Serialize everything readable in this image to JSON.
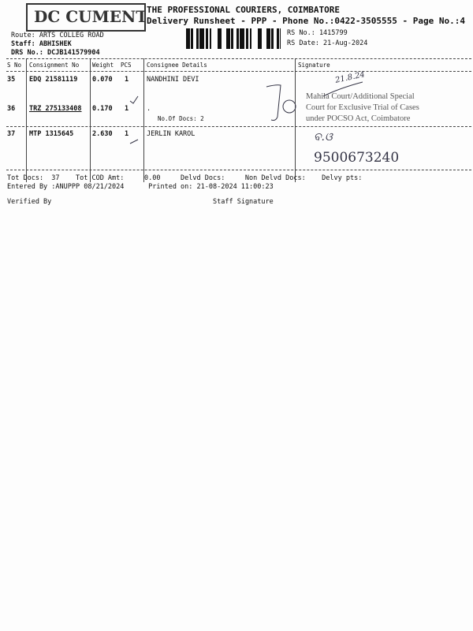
{
  "stamp": {
    "text": "DOCUMENTS"
  },
  "header": {
    "company": "THE PROFESSIONAL COURIERS, COIMBATORE",
    "subtitle": "Delivery Runsheet - PPP - Phone No.:0422-3505555 - Page No.:4",
    "route": "Route: ARTS COLLEG ROAD",
    "staff": "Staff: ABHISHEK",
    "drs": "DRS No.: DCJB141579904",
    "rs_no": "RS No.: 1415799",
    "rs_date": "RS Date: 21-Aug-2024"
  },
  "table": {
    "columns": [
      "S No",
      "Consignment No",
      "Weight",
      "PCS",
      "Consignee Details",
      "Signature"
    ],
    "rows": [
      {
        "sno": "35",
        "consignment": "EDQ 21581119",
        "weight": "0.070",
        "pcs": "1",
        "consignee": "NANDHINI DEVI",
        "extra": ""
      },
      {
        "sno": "36",
        "consignment": "TRZ 275133408",
        "weight": "0.170",
        "pcs": "1",
        "consignee": ".",
        "extra": "No.Of Docs: 2"
      },
      {
        "sno": "37",
        "consignment": "MTP 1315645",
        "weight": "2.630",
        "pcs": "1",
        "consignee": "JERLIN KAROL",
        "extra": ""
      }
    ]
  },
  "signature_area": {
    "seal_lines": [
      "Mahila Court/Additional Special",
      "Court for Exclusive Trial of Cases",
      "under POCSO Act, Coimbatore"
    ],
    "handwritten_date": "21.8.24",
    "handwritten_phone": "9500673240"
  },
  "footer": {
    "totals": "Tot Docs:  37    Tot COD Amt:     0.00     Delvd Docs:     Non Delvd Docs:    Delvy pts:",
    "entered": "Entered By :ANUPPP 08/21/2024      Printed on: 21-08-2024 11:00:23",
    "verified": "Verified By",
    "staff_signature": "Staff Signature"
  }
}
